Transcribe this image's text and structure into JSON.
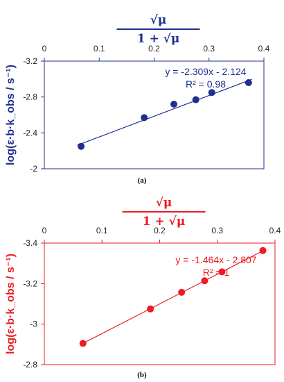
{
  "chart_data": [
    {
      "panel_label": "(a)",
      "type": "scatter",
      "color": "#1f2f8f",
      "x_axis_title": "√μ / (1 + √μ)",
      "x_axis_position": "top",
      "y_axis_title": "log(ε·b·k_obs / s⁻¹)",
      "xlim": [
        0,
        0.4
      ],
      "ylim": [
        -3.2,
        -2.0
      ],
      "x_ticks": [
        "0",
        "0.1",
        "0.2",
        "0.3",
        "0.4"
      ],
      "y_ticks": [
        "-2",
        "-2.4",
        "-2.8",
        "-3.2"
      ],
      "series": [
        {
          "x": [
            0.067,
            0.182,
            0.236,
            0.276,
            0.305,
            0.372
          ],
          "y": [
            -2.25,
            -2.57,
            -2.72,
            -2.77,
            -2.85,
            -2.96
          ]
        }
      ],
      "trendline": {
        "slope": -2.309,
        "intercept": -2.124,
        "x_range": [
          0.06,
          0.378
        ]
      },
      "annotation": {
        "equation": "y = -2.309x - 2.124",
        "r2": "R² = 0.98"
      },
      "grid": false
    },
    {
      "panel_label": "(b)",
      "type": "scatter",
      "color": "#ee1b24",
      "x_axis_title": "√μ / (1 + √μ)",
      "x_axis_position": "top",
      "y_axis_title": "log(ε·b·k_obs / s⁻¹)",
      "xlim": [
        0,
        0.4
      ],
      "ylim": [
        -3.4,
        -2.8
      ],
      "x_ticks": [
        "0",
        "0.1",
        "0.2",
        "0.3",
        "0.4"
      ],
      "y_ticks": [
        "-2.8",
        "-3",
        "-3.2",
        "-3.4"
      ],
      "series": [
        {
          "x": [
            0.067,
            0.184,
            0.238,
            0.278,
            0.308,
            0.379
          ],
          "y": [
            -2.905,
            -3.075,
            -3.157,
            -3.214,
            -3.258,
            -3.363
          ]
        }
      ],
      "trendline": {
        "slope": -1.464,
        "intercept": -2.807,
        "x_range": [
          0.067,
          0.379
        ]
      },
      "annotation": {
        "equation": "y = -1.464x - 2.807",
        "r2": "R² = 1"
      },
      "grid": false
    }
  ]
}
